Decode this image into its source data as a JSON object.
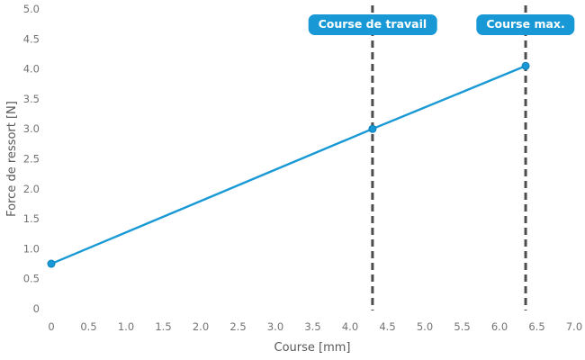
{
  "chart_data": {
    "type": "line",
    "title": "",
    "xlabel": "Course [mm]",
    "ylabel": "Force de ressort [N]",
    "xlim": [
      0,
      7
    ],
    "ylim": [
      0,
      5
    ],
    "grid": false,
    "legend": "none",
    "x_ticks": [
      "0",
      "0.5",
      "1.0",
      "1.5",
      "2.0",
      "2.5",
      "3.0",
      "3.5",
      "4.0",
      "4.5",
      "5.0",
      "5.5",
      "6.0",
      "6.5",
      "7.0"
    ],
    "y_ticks": [
      "0",
      "0.5",
      "1.0",
      "1.5",
      "2.0",
      "2.5",
      "3.0",
      "3.5",
      "4.0",
      "4.5",
      "5.0"
    ],
    "series": [
      {
        "name": "Force de ressort",
        "x": [
          0,
          4.3,
          6.35
        ],
        "y": [
          0.75,
          3.0,
          4.05
        ],
        "color": "#1899d6",
        "marker": "circle"
      }
    ],
    "annotations": [
      {
        "label": "Course de travail",
        "x": 4.3,
        "line_style": "dashed"
      },
      {
        "label": "Course max.",
        "x": 6.35,
        "line_style": "dashed"
      }
    ],
    "colors": {
      "line": "#1899d6",
      "marker": "#1899d6",
      "marker_edge": "#0d7fb8",
      "annotation_box": "#1899d6",
      "annotation_text": "#ffffff",
      "dashed_line": "#4d4d4d",
      "tick_label": "#737373",
      "axis_label": "#595959",
      "background": "#ffffff"
    }
  }
}
